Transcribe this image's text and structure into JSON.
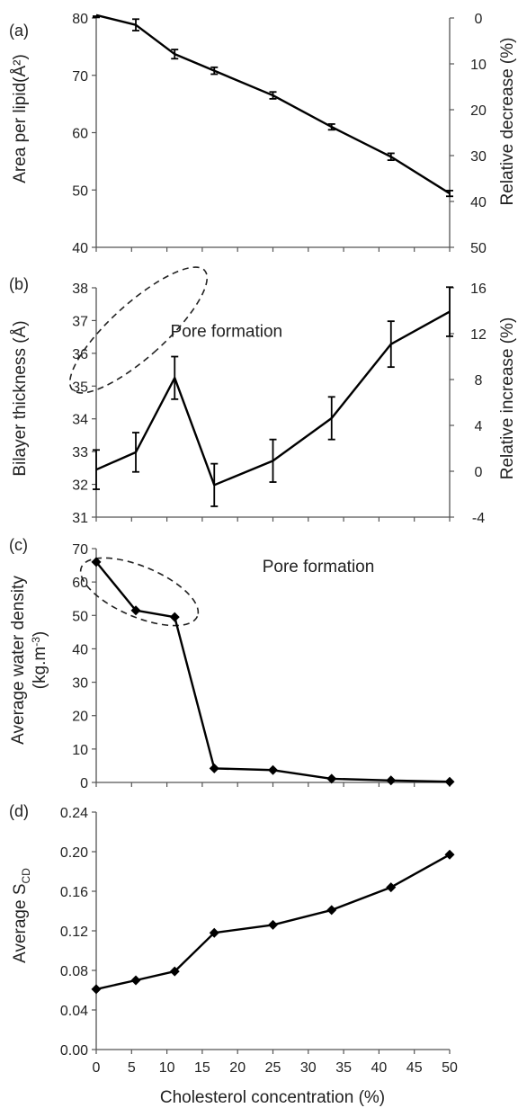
{
  "chart_data": [
    {
      "type": "line",
      "panel_label": "(a)",
      "xlabel": "",
      "ylabel": "Area per lipid(Å²)",
      "y2label": "Relative decrease (%)",
      "ylim": [
        40,
        80
      ],
      "yticks": [
        "40",
        "50",
        "60",
        "70",
        "80"
      ],
      "y2lim": [
        50,
        0
      ],
      "y2ticks": [
        "0",
        "10",
        "20",
        "30",
        "40",
        "50"
      ],
      "xlim": [
        0,
        50
      ],
      "x": [
        0,
        5.6,
        11.1,
        16.7,
        25,
        33.3,
        41.7,
        50
      ],
      "series": [
        {
          "values": [
            80.5,
            78.8,
            73.7,
            70.8,
            66.5,
            61.0,
            55.8,
            49.4
          ],
          "errors": [
            0.4,
            1.0,
            0.8,
            0.6,
            0.6,
            0.5,
            0.6,
            0.5
          ],
          "marker": "none"
        }
      ],
      "annotations": []
    },
    {
      "type": "line",
      "panel_label": "(b)",
      "xlabel": "",
      "ylabel": "Bilayer thickness (Å)",
      "y2label": "Relative increase (%)",
      "ylim": [
        31,
        38
      ],
      "yticks": [
        "31",
        "32",
        "33",
        "34",
        "35",
        "36",
        "37",
        "38"
      ],
      "y2lim": [
        -4,
        16
      ],
      "y2ticks": [
        "-4",
        "0",
        "4",
        "8",
        "12",
        "16"
      ],
      "xlim": [
        0,
        50
      ],
      "x": [
        0,
        5.6,
        11.1,
        16.7,
        25,
        33.3,
        41.7,
        50
      ],
      "series": [
        {
          "values": [
            32.45,
            32.98,
            35.25,
            31.98,
            32.72,
            34.02,
            36.28,
            37.27
          ],
          "errors": [
            0.6,
            0.6,
            0.65,
            0.65,
            0.65,
            0.65,
            0.7,
            0.75
          ],
          "marker": "none"
        }
      ],
      "annotations": [
        {
          "text": "Pore formation",
          "x": 10.5,
          "y": 36.5
        },
        {
          "shape": "dashed-ellipse",
          "encloses_x": [
            0,
            11.1
          ]
        }
      ]
    },
    {
      "type": "line",
      "panel_label": "(c)",
      "xlabel": "",
      "ylabel": "Average water density",
      "ylabel2": "(kg.m⁻³)",
      "ylim": [
        0,
        70
      ],
      "yticks": [
        "0",
        "10",
        "20",
        "30",
        "40",
        "50",
        "60",
        "70"
      ],
      "xlim": [
        0,
        50
      ],
      "x": [
        0,
        5.6,
        11.1,
        16.7,
        25,
        33.3,
        41.7,
        50
      ],
      "series": [
        {
          "values": [
            66.0,
            51.5,
            49.5,
            4.2,
            3.7,
            1.1,
            0.6,
            0.2
          ],
          "marker": "diamond"
        }
      ],
      "annotations": [
        {
          "text": "Pore formation",
          "x": 23.5,
          "y": 63
        },
        {
          "shape": "dashed-ellipse",
          "encloses_x": [
            0,
            11.1
          ]
        }
      ]
    },
    {
      "type": "line",
      "panel_label": "(d)",
      "xlabel": "Cholesterol concentration (%)",
      "ylabel": "Average S",
      "ylabel_sub": "CD",
      "ylim": [
        0,
        0.24
      ],
      "yticks": [
        "0.00",
        "0.04",
        "0.08",
        "0.12",
        "0.16",
        "0.20",
        "0.24"
      ],
      "xlim": [
        0,
        50
      ],
      "xticks": [
        "0",
        "5",
        "10",
        "15",
        "20",
        "25",
        "30",
        "35",
        "40",
        "45",
        "50"
      ],
      "x": [
        0,
        5.6,
        11.1,
        16.7,
        25,
        33.3,
        41.7,
        50
      ],
      "series": [
        {
          "values": [
            0.061,
            0.07,
            0.079,
            0.118,
            0.126,
            0.141,
            0.164,
            0.197
          ],
          "marker": "diamond"
        }
      ],
      "annotations": []
    }
  ]
}
